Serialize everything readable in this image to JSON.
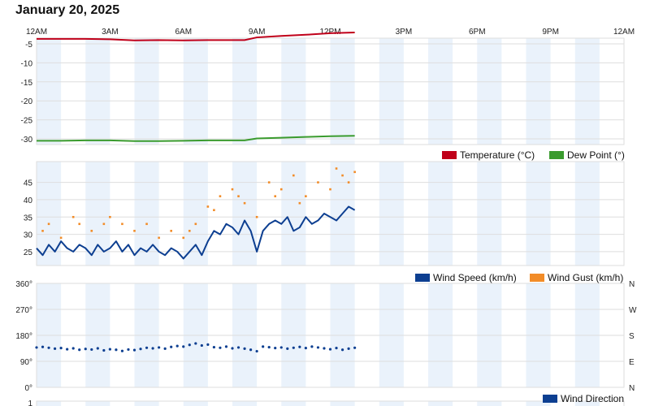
{
  "page": {
    "title": "January 20, 2025"
  },
  "time_axis": {
    "labels": [
      "12AM",
      "3AM",
      "6AM",
      "9AM",
      "12PM",
      "3PM",
      "6PM",
      "9PM",
      "12AM"
    ],
    "range_hours": [
      0,
      24
    ]
  },
  "colors": {
    "temperature": "#c0001a",
    "dew_point": "#3a9b2e",
    "wind_speed": "#0d3f91",
    "wind_gust": "#f28c28",
    "wind_direction": "#0d3f91",
    "band": "#eaf2fb",
    "grid": "#dedede"
  },
  "chart_data": [
    {
      "type": "line",
      "name": "temperature-dewpoint",
      "x_unit": "hours after 12AM",
      "ylim": [
        -31.5,
        -3.5
      ],
      "y_ticks": [
        -5,
        -10,
        -15,
        -20,
        -25,
        -30
      ],
      "grid": true,
      "legend_position": "bottom-right",
      "legend": [
        "Temperature (°C)",
        "Dew Point (°)"
      ],
      "series": [
        {
          "name": "Temperature (°C)",
          "x": [
            0,
            1,
            2,
            3,
            4,
            5,
            6,
            7,
            8,
            8.5,
            9,
            10,
            11,
            12,
            13
          ],
          "values": [
            -3.7,
            -3.7,
            -3.7,
            -3.8,
            -4.1,
            -4.0,
            -4.1,
            -4.0,
            -4.0,
            -4.0,
            -3.3,
            -2.9,
            -2.6,
            -2.2,
            -2.0
          ]
        },
        {
          "name": "Dew Point (°)",
          "x": [
            0,
            1,
            2,
            3,
            4,
            5,
            6,
            7,
            8,
            8.5,
            9,
            10,
            11,
            12,
            13
          ],
          "values": [
            -30.5,
            -30.5,
            -30.4,
            -30.4,
            -30.6,
            -30.6,
            -30.5,
            -30.4,
            -30.4,
            -30.4,
            -29.9,
            -29.7,
            -29.5,
            -29.3,
            -29.2
          ]
        }
      ]
    },
    {
      "type": "line",
      "name": "wind-speed-gust",
      "x_unit": "hours after 12AM",
      "ylim": [
        21,
        51
      ],
      "y_ticks": [
        45,
        40,
        35,
        30,
        25
      ],
      "grid": true,
      "legend_position": "bottom-right",
      "legend": [
        "Wind Speed (km/h)",
        "Wind Gust (km/h)"
      ],
      "series": [
        {
          "name": "Wind Speed (km/h)",
          "x": [
            0,
            0.25,
            0.5,
            0.75,
            1,
            1.25,
            1.5,
            1.75,
            2,
            2.25,
            2.5,
            2.75,
            3,
            3.25,
            3.5,
            3.75,
            4,
            4.25,
            4.5,
            4.75,
            5,
            5.25,
            5.5,
            5.75,
            6,
            6.25,
            6.5,
            6.75,
            7,
            7.25,
            7.5,
            7.75,
            8,
            8.25,
            8.5,
            8.75,
            9,
            9.25,
            9.5,
            9.75,
            10,
            10.25,
            10.5,
            10.75,
            11,
            11.25,
            11.5,
            11.75,
            12,
            12.25,
            12.5,
            12.75,
            13
          ],
          "values": [
            26,
            24,
            27,
            25,
            28,
            26,
            25,
            27,
            26,
            24,
            27,
            25,
            26,
            28,
            25,
            27,
            24,
            26,
            25,
            27,
            25,
            24,
            26,
            25,
            23,
            25,
            27,
            24,
            28,
            31,
            30,
            33,
            32,
            30,
            34,
            31,
            25,
            31,
            33,
            34,
            33,
            35,
            31,
            32,
            35,
            33,
            34,
            36,
            35,
            34,
            36,
            38,
            37
          ]
        },
        {
          "name": "Wind Gust (km/h)",
          "x": [
            0.25,
            0.5,
            1,
            1.5,
            1.75,
            2.25,
            2.75,
            3,
            3.5,
            4,
            4.5,
            5,
            5.5,
            6,
            6.25,
            6.5,
            7,
            7.25,
            7.5,
            8,
            8.25,
            8.5,
            9,
            9.5,
            9.75,
            10,
            10.5,
            10.75,
            11,
            11.5,
            12,
            12.25,
            12.5,
            12.75,
            13
          ],
          "values": [
            31,
            33,
            29,
            35,
            33,
            31,
            33,
            35,
            33,
            31,
            33,
            29,
            31,
            29,
            31,
            33,
            38,
            37,
            41,
            43,
            41,
            39,
            35,
            45,
            41,
            43,
            47,
            39,
            41,
            45,
            43,
            49,
            47,
            45,
            48
          ]
        }
      ]
    },
    {
      "type": "scatter",
      "name": "wind-direction",
      "x_unit": "hours after 12AM",
      "ylim": [
        0,
        360
      ],
      "y_ticks_left": [
        "360°",
        "270°",
        "180°",
        "90°",
        "0°"
      ],
      "y_ticks_right": [
        "N",
        "W",
        "S",
        "E",
        "N"
      ],
      "grid": true,
      "legend_position": "bottom-right",
      "legend": [
        "Wind Direction"
      ],
      "series": [
        {
          "name": "Wind Direction",
          "x": [
            0,
            0.25,
            0.5,
            0.75,
            1,
            1.25,
            1.5,
            1.75,
            2,
            2.25,
            2.5,
            2.75,
            3,
            3.25,
            3.5,
            3.75,
            4,
            4.25,
            4.5,
            4.75,
            5,
            5.25,
            5.5,
            5.75,
            6,
            6.25,
            6.5,
            6.75,
            7,
            7.25,
            7.5,
            7.75,
            8,
            8.25,
            8.5,
            8.75,
            9,
            9.25,
            9.5,
            9.75,
            10,
            10.25,
            10.5,
            10.75,
            11,
            11.25,
            11.5,
            11.75,
            12,
            12.25,
            12.5,
            12.75,
            13
          ],
          "values": [
            138,
            140,
            137,
            134,
            136,
            132,
            135,
            130,
            133,
            131,
            135,
            128,
            132,
            130,
            126,
            131,
            129,
            133,
            137,
            135,
            138,
            134,
            140,
            143,
            141,
            147,
            152,
            145,
            148,
            139,
            137,
            141,
            135,
            138,
            134,
            130,
            125,
            141,
            139,
            136,
            138,
            134,
            137,
            140,
            136,
            141,
            138,
            135,
            132,
            136,
            130,
            134,
            137
          ]
        }
      ]
    },
    {
      "type": "line",
      "name": "bottom-panel",
      "y_ticks": [
        "1"
      ]
    }
  ]
}
